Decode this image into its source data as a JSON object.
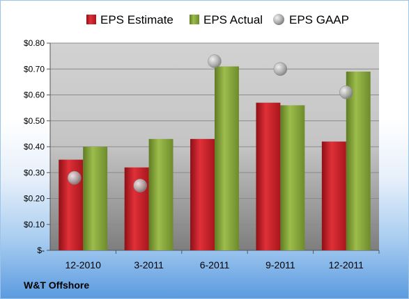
{
  "company": "W&T Offshore",
  "chart_data": {
    "type": "bar",
    "categories": [
      "12-2010",
      "3-2011",
      "6-2011",
      "9-2011",
      "12-2011"
    ],
    "series": [
      {
        "name": "EPS Estimate",
        "kind": "bar",
        "color": "#d0222a",
        "values": [
          0.35,
          0.32,
          0.43,
          0.57,
          0.42
        ]
      },
      {
        "name": "EPS Actual",
        "kind": "bar",
        "color": "#8fb040",
        "values": [
          0.4,
          0.43,
          0.71,
          0.56,
          0.69
        ]
      },
      {
        "name": "EPS GAAP",
        "kind": "marker",
        "color": "#a8a8a8",
        "values": [
          0.28,
          0.25,
          0.73,
          0.7,
          0.61
        ]
      }
    ],
    "yticks": [
      "$-",
      "$0.10",
      "$0.20",
      "$0.30",
      "$0.40",
      "$0.50",
      "$0.60",
      "$0.70",
      "$0.80"
    ],
    "ylim": [
      0,
      0.8
    ],
    "grid": true,
    "legend_position": "top"
  }
}
